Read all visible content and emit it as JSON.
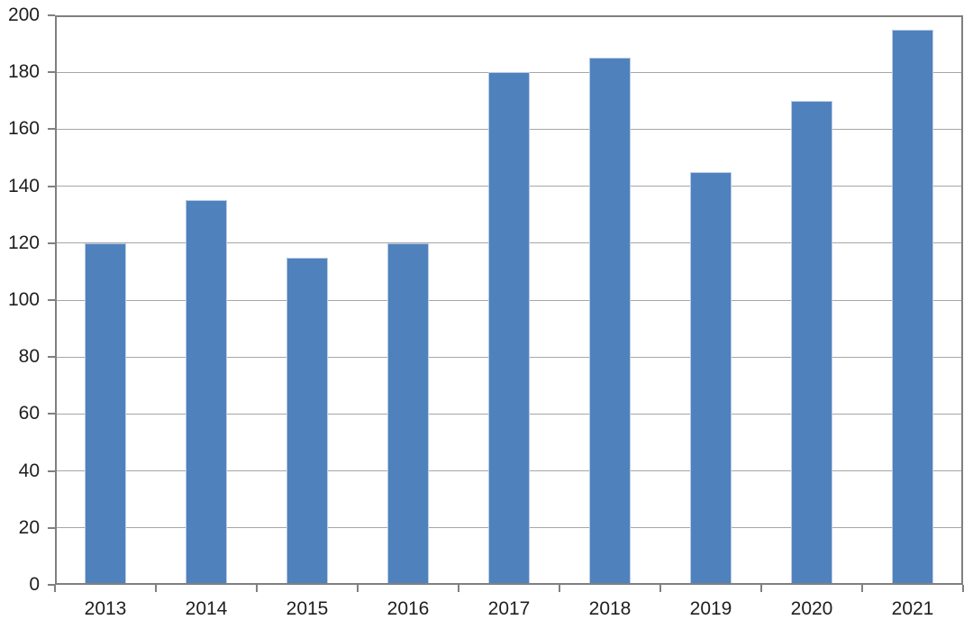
{
  "chart_data": {
    "type": "bar",
    "title": "",
    "xlabel": "",
    "ylabel": "",
    "categories": [
      "2013",
      "2014",
      "2015",
      "2016",
      "2017",
      "2018",
      "2019",
      "2020",
      "2021"
    ],
    "values": [
      120,
      135,
      115,
      120,
      180,
      185,
      145,
      170,
      195
    ],
    "ylim": [
      0,
      200
    ],
    "ytick_step": 20,
    "yticks": [
      0,
      20,
      40,
      60,
      80,
      100,
      120,
      140,
      160,
      180,
      200
    ],
    "grid": "horizontal",
    "legend": "none",
    "colors": {
      "bar_fill": "#4f81bd",
      "bar_edge": "#b9cce6",
      "gridline": "#a6a6a6",
      "axis": "#808080",
      "text": "#1f1f1f",
      "background": "#ffffff"
    }
  }
}
